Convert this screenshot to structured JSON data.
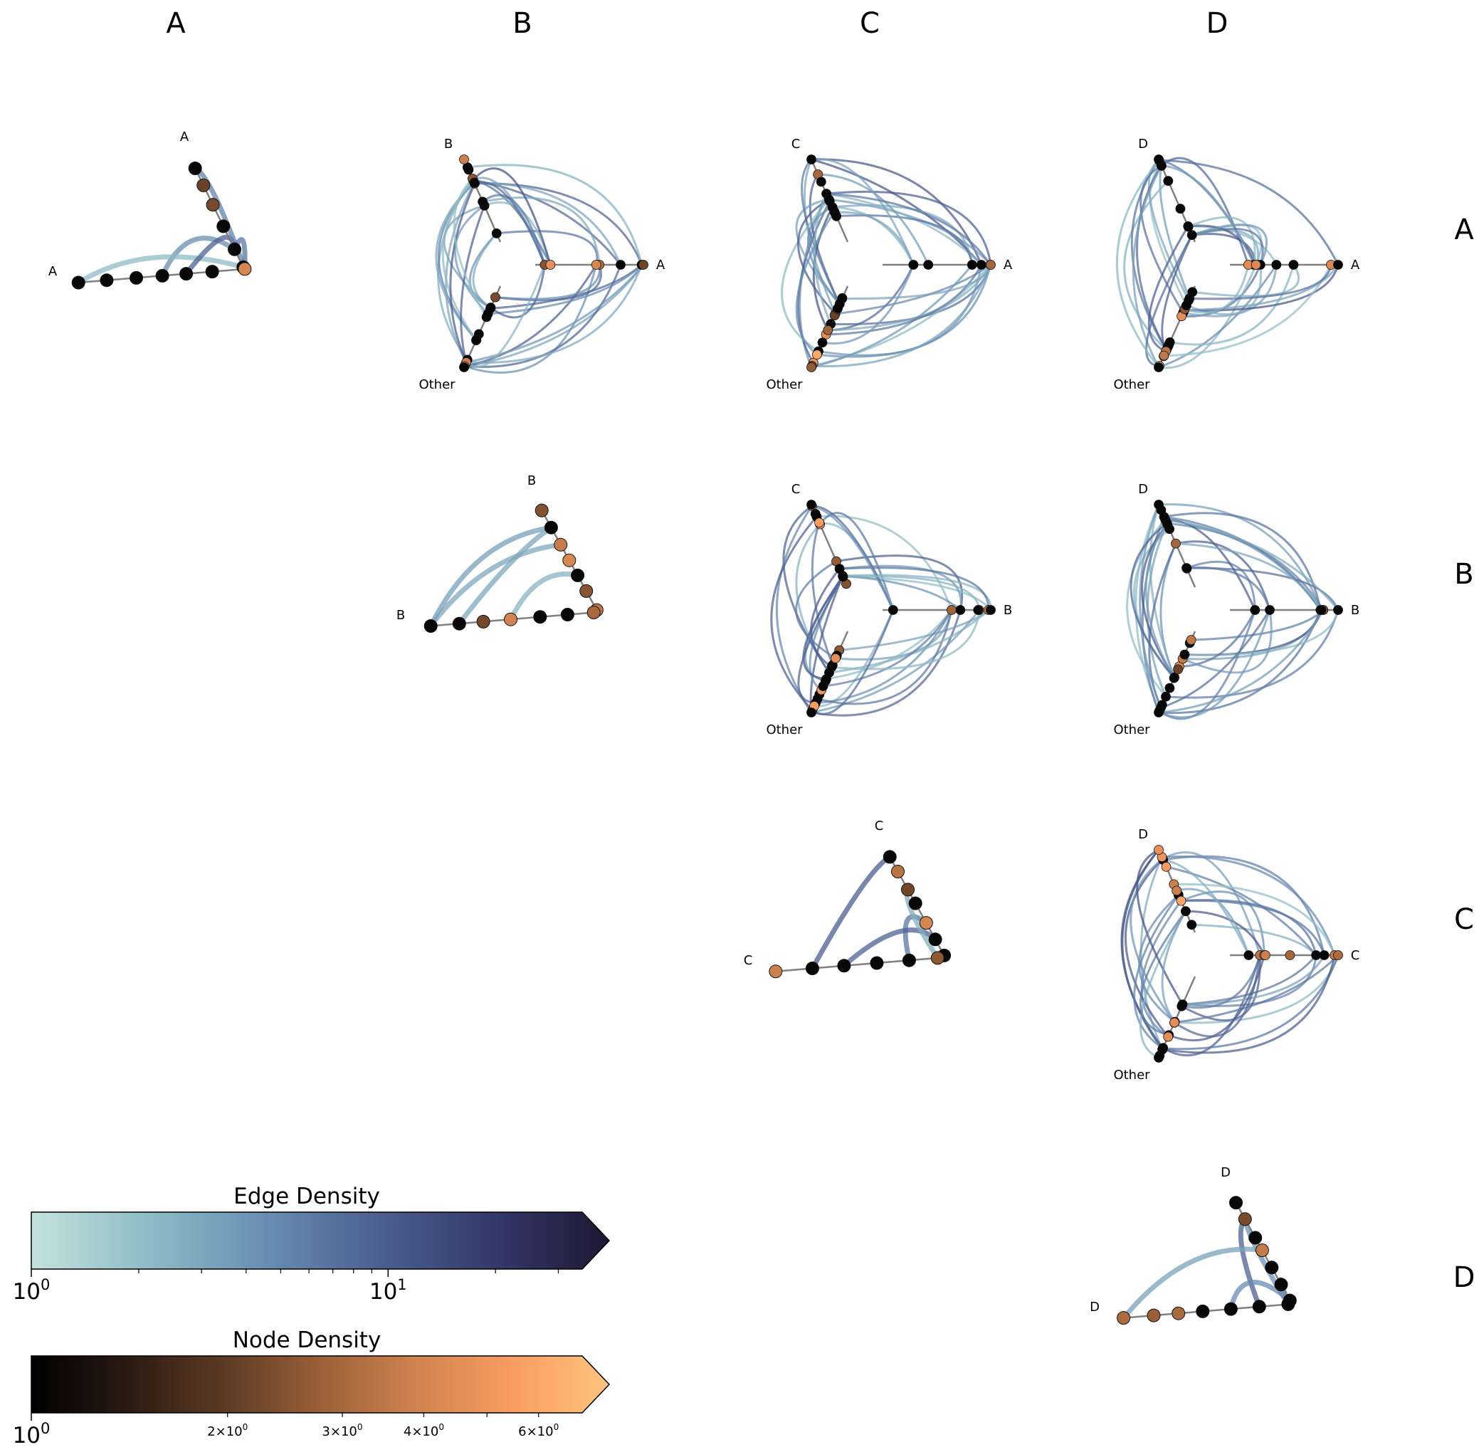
{
  "column_headers": [
    "A",
    "B",
    "C",
    "D"
  ],
  "row_headers": [
    "A",
    "B",
    "C",
    "D"
  ],
  "panels": [
    {
      "id": "AA",
      "type": "within",
      "labels": [
        "A",
        "A"
      ]
    },
    {
      "id": "AB",
      "type": "between",
      "labels": [
        "B",
        "A",
        "Other"
      ]
    },
    {
      "id": "AC",
      "type": "between",
      "labels": [
        "C",
        "A",
        "Other"
      ]
    },
    {
      "id": "AD",
      "type": "between",
      "labels": [
        "D",
        "A",
        "Other"
      ]
    },
    {
      "id": "BB",
      "type": "within",
      "labels": [
        "B",
        "B"
      ]
    },
    {
      "id": "BC",
      "type": "between",
      "labels": [
        "C",
        "B",
        "Other"
      ]
    },
    {
      "id": "BD",
      "type": "between",
      "labels": [
        "D",
        "B",
        "Other"
      ]
    },
    {
      "id": "CC",
      "type": "within",
      "labels": [
        "C",
        "C"
      ]
    },
    {
      "id": "CD",
      "type": "between",
      "labels": [
        "D",
        "C",
        "Other"
      ]
    },
    {
      "id": "DD",
      "type": "within",
      "labels": [
        "D",
        "D"
      ]
    }
  ],
  "colorbars": {
    "edge": {
      "title": "Edge Density",
      "scale": "log",
      "major_ticks": [
        {
          "value": 1,
          "base": "10",
          "exp": "0"
        },
        {
          "value": 10,
          "base": "10",
          "exp": "1"
        }
      ],
      "minor_ticks": [
        2,
        3,
        4,
        5,
        6,
        7,
        8,
        9,
        20,
        30
      ],
      "range": [
        1,
        35
      ],
      "extend": "max",
      "colors": [
        "#c4e2df",
        "#8fbcc6",
        "#6a8fb3",
        "#4c5f92",
        "#343a6b",
        "#1f1733"
      ]
    },
    "node": {
      "title": "Node Density",
      "scale": "log",
      "major_ticks": [
        {
          "value": 1,
          "base": "10",
          "exp": "0"
        }
      ],
      "minor_ticks": [
        2,
        3,
        4,
        5,
        6
      ],
      "minor_labels": [
        {
          "value": 2,
          "mant": "2",
          "base": "10",
          "exp": "0"
        },
        {
          "value": 3,
          "mant": "3",
          "base": "10",
          "exp": "0"
        },
        {
          "value": 4,
          "mant": "4",
          "base": "10",
          "exp": "0"
        },
        {
          "value": 6,
          "mant": "6",
          "base": "10",
          "exp": "0"
        }
      ],
      "range": [
        1,
        7
      ],
      "extend": "max",
      "colors": [
        "#000000",
        "#2b1a12",
        "#5c3a24",
        "#9a6038",
        "#d0834f",
        "#f99d62",
        "#ffc47f"
      ]
    }
  }
}
